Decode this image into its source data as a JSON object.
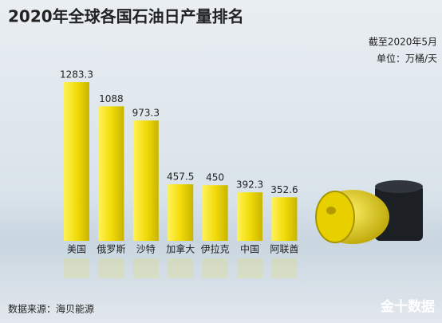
{
  "chart_data": {
    "type": "bar",
    "title": "2020年全球各国石油日产量排名",
    "notes": [
      "截至2020年5月",
      "单位：万桶/天"
    ],
    "categories": [
      "美国",
      "俄罗斯",
      "沙特",
      "加拿大",
      "伊拉克",
      "中国",
      "阿联酋"
    ],
    "values": [
      1283.3,
      1088,
      973.3,
      457.5,
      450,
      392.3,
      352.6
    ],
    "color": "#f2dc0a",
    "source": "数据来源：海贝能源",
    "logo": "金十数据"
  }
}
